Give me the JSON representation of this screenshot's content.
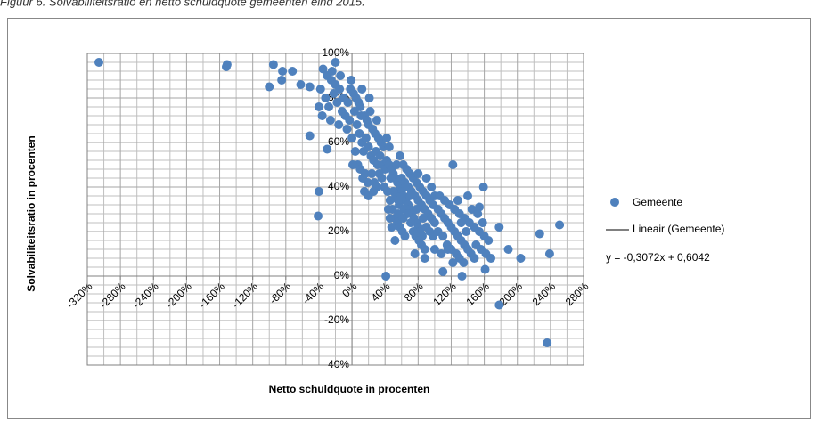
{
  "chart_data": {
    "type": "scatter",
    "title": "Figuur 6. Solvabiliteitsratio en netto schuldquote gemeenten eind 2015.",
    "x_label": "Netto schuldquote in procenten",
    "y_label": "Solvabiliteitsratio in procenten",
    "xlim": [
      -320,
      280
    ],
    "ylim": [
      -40,
      100
    ],
    "xticks": [
      {
        "value": -320,
        "label": "-320%"
      },
      {
        "value": -280,
        "label": "-280%"
      },
      {
        "value": -240,
        "label": "-240%"
      },
      {
        "value": -200,
        "label": "-200%"
      },
      {
        "value": -160,
        "label": "-160%"
      },
      {
        "value": -120,
        "label": "-120%"
      },
      {
        "value": -80,
        "label": "-80%"
      },
      {
        "value": -40,
        "label": "-40%"
      },
      {
        "value": 0,
        "label": "0%"
      },
      {
        "value": 40,
        "label": "40%"
      },
      {
        "value": 80,
        "label": "80%"
      },
      {
        "value": 120,
        "label": "120%"
      },
      {
        "value": 160,
        "label": "160%"
      },
      {
        "value": 200,
        "label": "200%"
      },
      {
        "value": 240,
        "label": "240%"
      },
      {
        "value": 280,
        "label": "280%"
      }
    ],
    "yticks": [
      {
        "value": -40,
        "label": "-40%"
      },
      {
        "value": -20,
        "label": "-20%"
      },
      {
        "value": 0,
        "label": "0%"
      },
      {
        "value": 20,
        "label": "20%"
      },
      {
        "value": 40,
        "label": "40%"
      },
      {
        "value": 60,
        "label": "60%"
      },
      {
        "value": 80,
        "label": "80%"
      },
      {
        "value": 100,
        "label": "100%"
      }
    ],
    "x_minor_grid": [
      -300,
      -260,
      -220,
      -180,
      -140,
      -100,
      -60,
      -20,
      20,
      60,
      100,
      140,
      180,
      220,
      260
    ],
    "y_minor_grid": [
      -36,
      -32,
      -28,
      -24,
      -16,
      -12,
      -8,
      -4,
      4,
      8,
      12,
      16,
      24,
      28,
      32,
      36,
      44,
      48,
      52,
      56,
      64,
      68,
      72,
      76,
      84,
      88,
      92,
      96
    ],
    "grid": true,
    "legend": "right",
    "series": [
      {
        "name": "Gemeente",
        "color": "#4f81bd",
        "x": [
          -306,
          -152,
          -151,
          -95,
          -100,
          -84,
          -72,
          -85,
          -62,
          -51,
          -51,
          -40,
          -41,
          -30,
          41,
          133,
          178,
          236,
          239,
          251,
          227,
          204,
          189,
          178,
          159,
          154,
          161,
          122,
          -35,
          -30,
          -25,
          -20,
          -15,
          -10,
          -5,
          -38,
          -32,
          -28,
          -22,
          -18,
          -12,
          -8,
          -3,
          -40,
          -36,
          -26,
          -16,
          -6,
          -1,
          -2,
          -24,
          -20,
          -14,
          2,
          5,
          8,
          10,
          12,
          15,
          18,
          20,
          22,
          25,
          28,
          30,
          32,
          35,
          38,
          3,
          6,
          9,
          12,
          14,
          17,
          20,
          23,
          26,
          29,
          31,
          34,
          37,
          40,
          0,
          4,
          7,
          10,
          13,
          16,
          19,
          24,
          27,
          33,
          36,
          39,
          42,
          45,
          21,
          11,
          1,
          15,
          20,
          30,
          26,
          42,
          45,
          48,
          50,
          52,
          55,
          58,
          60,
          62,
          65,
          68,
          70,
          72,
          75,
          78,
          80,
          82,
          85,
          43,
          46,
          49,
          52,
          55,
          58,
          61,
          64,
          47,
          53,
          57,
          63,
          67,
          71,
          74,
          77,
          81,
          84,
          88,
          44,
          48,
          52,
          56,
          60,
          64,
          68,
          72,
          76,
          80,
          84,
          88,
          92,
          96,
          100,
          66,
          70,
          74,
          78,
          82,
          86,
          90,
          94,
          98,
          54,
          58,
          62,
          90,
          94,
          98,
          86,
          78,
          70,
          62,
          56,
          50,
          46,
          90,
          80,
          96,
          100,
          88,
          76,
          100,
          104,
          108,
          112,
          116,
          120,
          124,
          128,
          132,
          136,
          140,
          144,
          148,
          104,
          110,
          115,
          120,
          126,
          130,
          135,
          106,
          112,
          118,
          124,
          130,
          136,
          142,
          148,
          154,
          160,
          165,
          140,
          128,
          116,
          108,
          150,
          156,
          162,
          168,
          110,
          122,
          145,
          152,
          138,
          132,
          158
        ],
        "values": [
          96,
          94,
          95,
          95,
          85,
          92,
          92,
          88,
          86,
          85,
          63,
          38,
          27,
          57,
          0,
          0,
          -13,
          -30,
          10,
          23,
          19,
          8,
          12,
          22,
          40,
          31,
          3,
          50,
          93,
          90,
          88,
          86,
          84,
          80,
          78,
          84,
          80,
          76,
          82,
          78,
          74,
          72,
          70,
          76,
          72,
          70,
          68,
          66,
          88,
          84,
          92,
          96,
          90,
          82,
          80,
          78,
          76,
          84,
          72,
          70,
          68,
          74,
          66,
          64,
          70,
          62,
          60,
          58,
          74,
          68,
          64,
          60,
          56,
          62,
          58,
          54,
          52,
          56,
          50,
          54,
          50,
          48,
          62,
          56,
          50,
          48,
          44,
          46,
          42,
          46,
          42,
          46,
          44,
          40,
          62,
          58,
          80,
          72,
          50,
          38,
          36,
          40,
          38,
          52,
          50,
          48,
          46,
          44,
          42,
          40,
          38,
          36,
          34,
          32,
          30,
          28,
          26,
          24,
          22,
          20,
          18,
          38,
          34,
          30,
          26,
          24,
          22,
          20,
          18,
          44,
          36,
          32,
          30,
          28,
          24,
          20,
          18,
          16,
          14,
          12,
          30,
          22,
          16,
          28,
          44,
          42,
          40,
          38,
          36,
          34,
          32,
          30,
          28,
          26,
          24,
          48,
          46,
          44,
          42,
          40,
          38,
          36,
          34,
          32,
          50,
          54,
          50,
          22,
          20,
          18,
          26,
          30,
          36,
          26,
          34,
          38,
          26,
          44,
          46,
          40,
          36,
          8,
          10,
          12,
          30,
          28,
          26,
          24,
          22,
          20,
          18,
          16,
          14,
          12,
          10,
          8,
          20,
          18,
          14,
          12,
          10,
          8,
          6,
          36,
          34,
          32,
          30,
          28,
          26,
          24,
          22,
          20,
          18,
          16,
          36,
          34,
          12,
          10,
          14,
          12,
          10,
          8,
          2,
          6,
          30,
          28,
          20,
          24,
          24
        ]
      }
    ],
    "trendline": {
      "name": "Lineair (Gemeente)",
      "equation": "y = -0,3072x + 0,6042",
      "color": "#000000"
    }
  }
}
